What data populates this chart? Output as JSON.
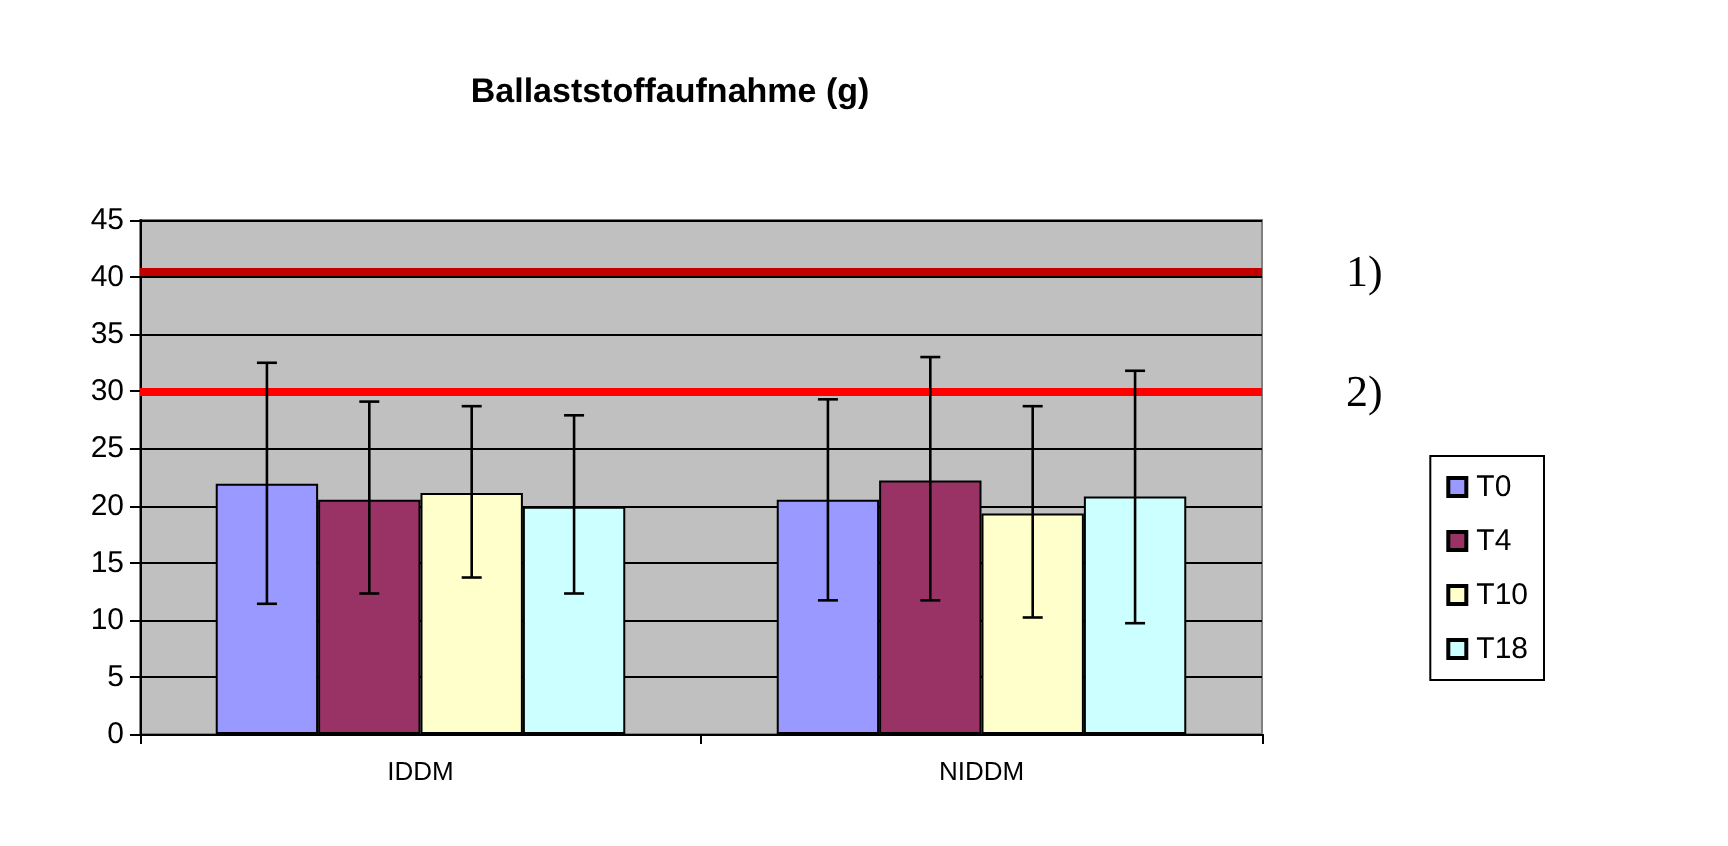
{
  "chart_data": {
    "type": "bar",
    "title": "Ballaststoffaufnahme (g)",
    "categories": [
      "IDDM",
      "NIDDM"
    ],
    "series": [
      {
        "name": "T0",
        "color": "#9999ff",
        "values": [
          21.9,
          20.5
        ],
        "errors": [
          [
            11.4,
            32.5
          ],
          [
            11.7,
            29.3
          ]
        ]
      },
      {
        "name": "T4",
        "color": "#993366",
        "values": [
          20.5,
          22.2
        ],
        "errors": [
          [
            12.3,
            29.1
          ],
          [
            11.7,
            33.0
          ]
        ]
      },
      {
        "name": "T10",
        "color": "#ffffcc",
        "values": [
          21.1,
          19.3
        ],
        "errors": [
          [
            13.7,
            28.7
          ],
          [
            10.2,
            28.7
          ]
        ]
      },
      {
        "name": "T18",
        "color": "#ccffff",
        "values": [
          19.9,
          20.8
        ],
        "errors": [
          [
            12.3,
            27.9
          ],
          [
            9.7,
            31.8
          ]
        ]
      }
    ],
    "ylim": [
      0,
      45
    ],
    "yticks": [
      0,
      5,
      10,
      15,
      20,
      25,
      30,
      35,
      40,
      45
    ],
    "grid": "y",
    "legend": "right",
    "ref_lines": [
      {
        "axis": "y",
        "value": 40.5,
        "color": "#c00000"
      },
      {
        "axis": "y",
        "value": 30,
        "color": "#ff0000"
      }
    ],
    "annotations": [
      "1)",
      "2)"
    ]
  }
}
